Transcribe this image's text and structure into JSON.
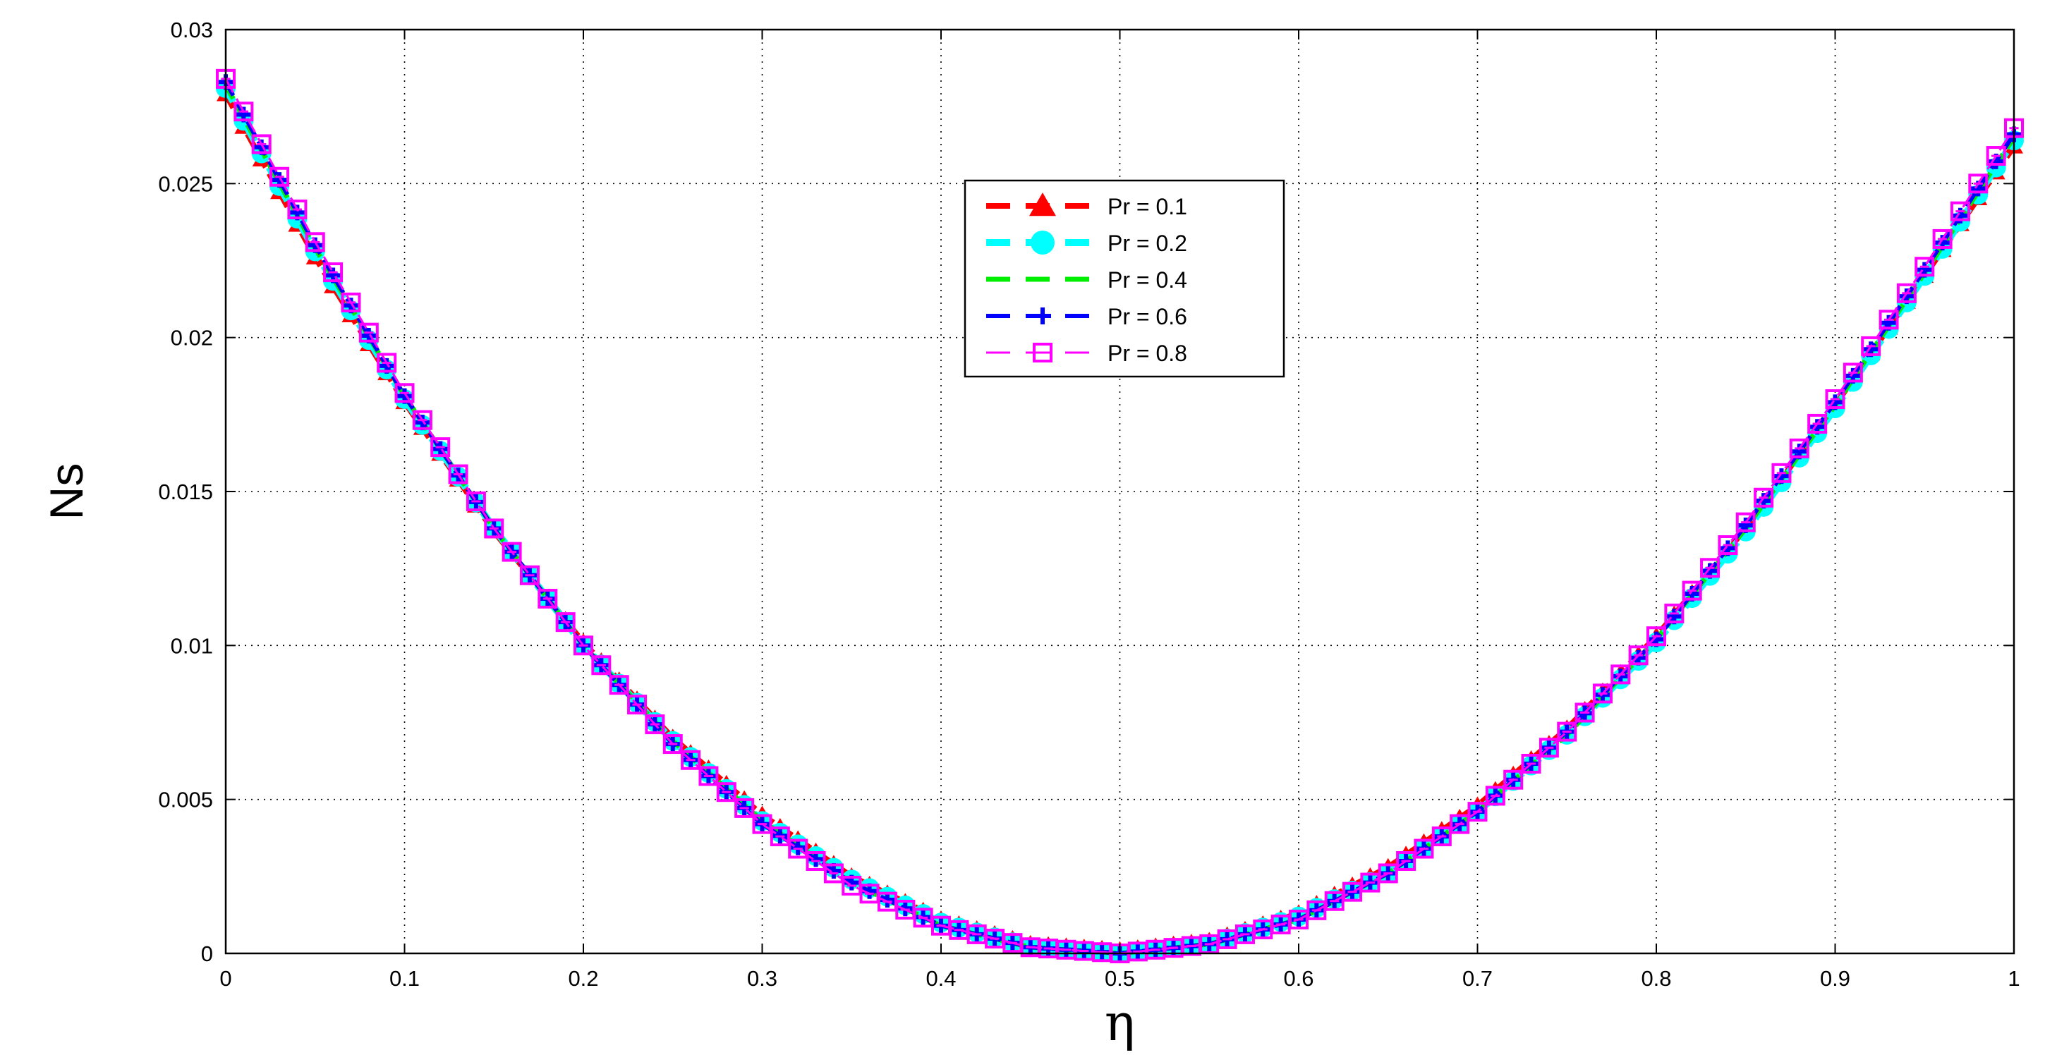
{
  "chart_data": {
    "type": "line",
    "title": "",
    "xlabel": "η",
    "ylabel": "Ns",
    "xlim": [
      0,
      1
    ],
    "ylim": [
      0,
      0.03
    ],
    "xticks": [
      0,
      0.1,
      0.2,
      0.3,
      0.4,
      0.5,
      0.6,
      0.7,
      0.8,
      0.9,
      1
    ],
    "xtick_labels": [
      "0",
      "0.1",
      "0.2",
      "0.3",
      "0.4",
      "0.5",
      "0.6",
      "0.7",
      "0.8",
      "0.9",
      "1"
    ],
    "yticks": [
      0,
      0.005,
      0.01,
      0.015,
      0.02,
      0.025,
      0.03
    ],
    "ytick_labels": [
      "0",
      "0.005",
      "0.01",
      "0.015",
      "0.02",
      "0.025",
      "0.03"
    ],
    "grid": true,
    "legend_position": "upper-center",
    "series": [
      {
        "name": "Pr = 0.1",
        "color": "#ff0000",
        "marker": "triangle",
        "line": "dashed",
        "x": [
          0,
          0.05,
          0.1,
          0.15,
          0.2,
          0.25,
          0.3,
          0.35,
          0.4,
          0.45,
          0.5,
          0.55,
          0.6,
          0.65,
          0.7,
          0.75,
          0.8,
          0.85,
          0.9,
          0.95,
          1
        ],
        "y": [
          0.0279,
          0.0226,
          0.0179,
          0.0137,
          0.0101,
          0.007,
          0.0045,
          0.0025,
          0.0011,
          0.0003,
          0.0001,
          0.0004,
          0.0013,
          0.0028,
          0.0048,
          0.0073,
          0.0103,
          0.0138,
          0.0178,
          0.022,
          0.0262
        ]
      },
      {
        "name": "Pr = 0.2",
        "color": "#00ffff",
        "marker": "circle",
        "line": "dashed",
        "x": [
          0,
          0.05,
          0.1,
          0.15,
          0.2,
          0.25,
          0.3,
          0.35,
          0.4,
          0.45,
          0.5,
          0.55,
          0.6,
          0.65,
          0.7,
          0.75,
          0.8,
          0.85,
          0.9,
          0.95,
          1
        ],
        "y": [
          0.0281,
          0.0228,
          0.018,
          0.0138,
          0.01,
          0.0069,
          0.0043,
          0.0024,
          0.001,
          0.0002,
          0.0,
          0.0003,
          0.0012,
          0.0026,
          0.0046,
          0.0071,
          0.0101,
          0.0137,
          0.0177,
          0.022,
          0.0264
        ]
      },
      {
        "name": "Pr = 0.4",
        "color": "#00ee00",
        "marker": "none",
        "line": "dashed",
        "x": [
          0,
          0.05,
          0.1,
          0.15,
          0.2,
          0.25,
          0.3,
          0.35,
          0.4,
          0.45,
          0.5,
          0.55,
          0.6,
          0.65,
          0.7,
          0.75,
          0.8,
          0.85,
          0.9,
          0.95,
          1
        ],
        "y": [
          0.0282,
          0.0229,
          0.0181,
          0.0138,
          0.01,
          0.0069,
          0.0043,
          0.0023,
          0.0009,
          0.0002,
          0.0,
          0.0003,
          0.0011,
          0.0026,
          0.0046,
          0.0071,
          0.0102,
          0.0138,
          0.0178,
          0.0221,
          0.0265
        ]
      },
      {
        "name": "Pr = 0.6",
        "color": "#0000ff",
        "marker": "plus",
        "line": "dashed",
        "x": [
          0,
          0.05,
          0.1,
          0.15,
          0.2,
          0.25,
          0.3,
          0.35,
          0.4,
          0.45,
          0.5,
          0.55,
          0.6,
          0.65,
          0.7,
          0.75,
          0.8,
          0.85,
          0.9,
          0.95,
          1
        ],
        "y": [
          0.0283,
          0.023,
          0.0181,
          0.0138,
          0.01,
          0.0068,
          0.0042,
          0.0023,
          0.0009,
          0.0002,
          0.0,
          0.0003,
          0.0011,
          0.0026,
          0.0046,
          0.0072,
          0.0102,
          0.0139,
          0.0179,
          0.0222,
          0.0266
        ]
      },
      {
        "name": "Pr = 0.8",
        "color": "#ff00ff",
        "marker": "square",
        "line": "dashed",
        "x": [
          0,
          0.05,
          0.1,
          0.15,
          0.2,
          0.25,
          0.3,
          0.35,
          0.4,
          0.45,
          0.5,
          0.55,
          0.6,
          0.65,
          0.7,
          0.75,
          0.8,
          0.85,
          0.9,
          0.95,
          1
        ],
        "y": [
          0.0284,
          0.0231,
          0.0182,
          0.0138,
          0.01,
          0.0068,
          0.0042,
          0.0022,
          0.0009,
          0.0002,
          0.0,
          0.0003,
          0.0011,
          0.0026,
          0.0046,
          0.0072,
          0.0103,
          0.014,
          0.018,
          0.0223,
          0.0268
        ]
      }
    ]
  }
}
